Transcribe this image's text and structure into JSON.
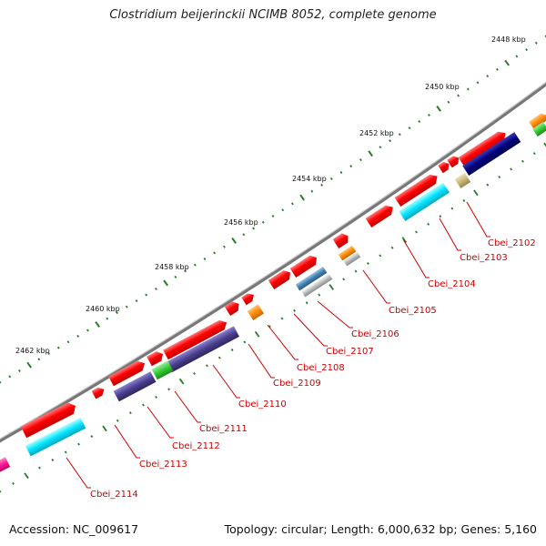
{
  "title": "Clostridium beijerinckii NCIMB 8052, complete genome",
  "accession": "Accession: NC_009617",
  "meta": "Topology: circular; Length: 6,000,632 bp; Genes: 5,160",
  "ticks": [
    "2448 kbp",
    "2450 kbp",
    "2452 kbp",
    "2454 kbp",
    "2456 kbp",
    "2458 kbp",
    "2460 kbp",
    "2462 kbp"
  ],
  "genes": [
    "Cbei_2102",
    "Cbei_2103",
    "Cbei_2104",
    "Cbei_2105",
    "Cbei_2106",
    "Cbei_2107",
    "Cbei_2108",
    "Cbei_2109",
    "Cbei_2110",
    "Cbei_2111",
    "Cbei_2112",
    "Cbei_2113",
    "Cbei_2114"
  ],
  "colors": {
    "cds": "#ff0000",
    "cyan": "#00e5ff",
    "navy": "#000080",
    "slate": "#4b3f8f",
    "green": "#33cc33",
    "orange": "#ff8c00",
    "steel": "#4682b4",
    "khaki": "#c8b878",
    "magenta": "#ff1493",
    "backbone": "#888888",
    "tick": "#2a7a2a",
    "label": "#cc0000"
  }
}
